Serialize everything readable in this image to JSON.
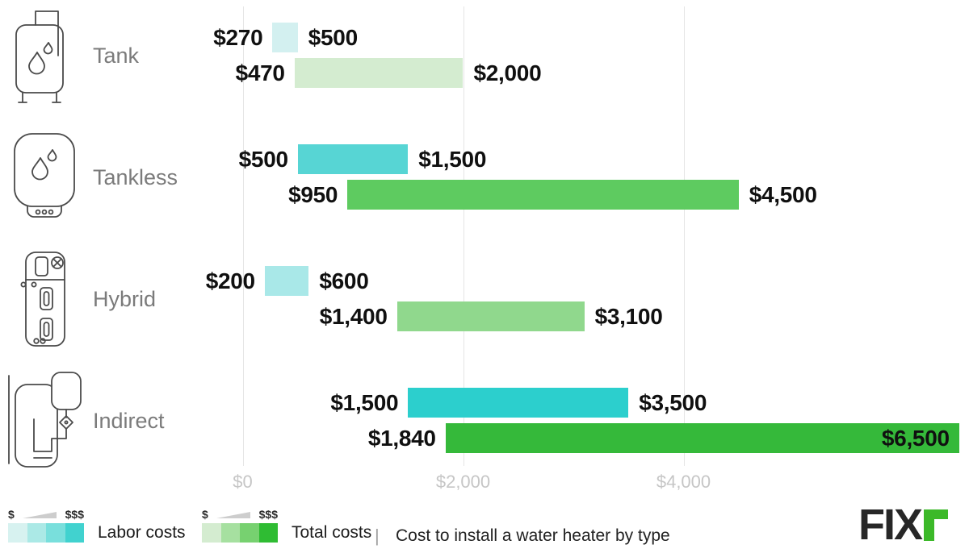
{
  "chart_data": {
    "type": "bar",
    "orientation": "horizontal",
    "title": "Cost to install a water heater by type",
    "categories": [
      "Tank",
      "Tankless",
      "Hybrid",
      "Indirect"
    ],
    "series": [
      {
        "name": "Labor costs",
        "ranges": [
          {
            "min": 270,
            "max": 500
          },
          {
            "min": 500,
            "max": 1500
          },
          {
            "min": 200,
            "max": 600
          },
          {
            "min": 1500,
            "max": 3500
          }
        ]
      },
      {
        "name": "Total costs",
        "ranges": [
          {
            "min": 470,
            "max": 2000
          },
          {
            "min": 950,
            "max": 4500
          },
          {
            "min": 1400,
            "max": 3100
          },
          {
            "min": 1840,
            "max": 6500
          }
        ]
      }
    ],
    "x_ticks": [
      {
        "label": "$0",
        "value": 0
      },
      {
        "label": "$2,000",
        "value": 2000
      },
      {
        "label": "$4,000",
        "value": 4000
      }
    ],
    "xlim": [
      0,
      6600
    ],
    "grid": "vertical-lines",
    "legend_position": "bottom"
  },
  "rows": [
    {
      "label": "Tank",
      "icon": "tank-icon",
      "labor": {
        "min": 270,
        "max": 500,
        "min_label": "$270",
        "max_label": "$500",
        "color": "#d3f0f0"
      },
      "total": {
        "min": 470,
        "max": 2000,
        "min_label": "$470",
        "max_label": "$2,000",
        "color": "#d4ecd0"
      }
    },
    {
      "label": "Tankless",
      "icon": "tankless-icon",
      "labor": {
        "min": 500,
        "max": 1500,
        "min_label": "$500",
        "max_label": "$1,500",
        "color": "#57d5d4"
      },
      "total": {
        "min": 950,
        "max": 4500,
        "min_label": "$950",
        "max_label": "$4,500",
        "color": "#5ecb60"
      }
    },
    {
      "label": "Hybrid",
      "icon": "hybrid-icon",
      "labor": {
        "min": 200,
        "max": 600,
        "min_label": "$200",
        "max_label": "$600",
        "color": "#a9e8e8"
      },
      "total": {
        "min": 1400,
        "max": 3100,
        "min_label": "$1,400",
        "max_label": "$3,100",
        "color": "#90d88d"
      }
    },
    {
      "label": "Indirect",
      "icon": "indirect-icon",
      "labor": {
        "min": 1500,
        "max": 3500,
        "min_label": "$1,500",
        "max_label": "$3,500",
        "color": "#2ccfcd"
      },
      "total": {
        "min": 1840,
        "max": 6500,
        "min_label": "$1,840",
        "max_label": "$6,500",
        "color": "#35b93a"
      }
    }
  ],
  "legend": {
    "labor": {
      "label": "Labor costs",
      "low": "$",
      "high": "$$$",
      "swatch": [
        "#d7f2f0",
        "#abe9e6",
        "#79dfdc",
        "#41d2cf"
      ]
    },
    "total": {
      "label": "Total costs",
      "low": "$",
      "high": "$$$",
      "swatch": [
        "#d4ecd0",
        "#a6e0a0",
        "#77d170",
        "#2fbc33"
      ]
    },
    "divider": "|",
    "title": "Cost to install a water heater by type"
  },
  "logo": {
    "text": "FIX",
    "accent_color": "#3cb929"
  }
}
